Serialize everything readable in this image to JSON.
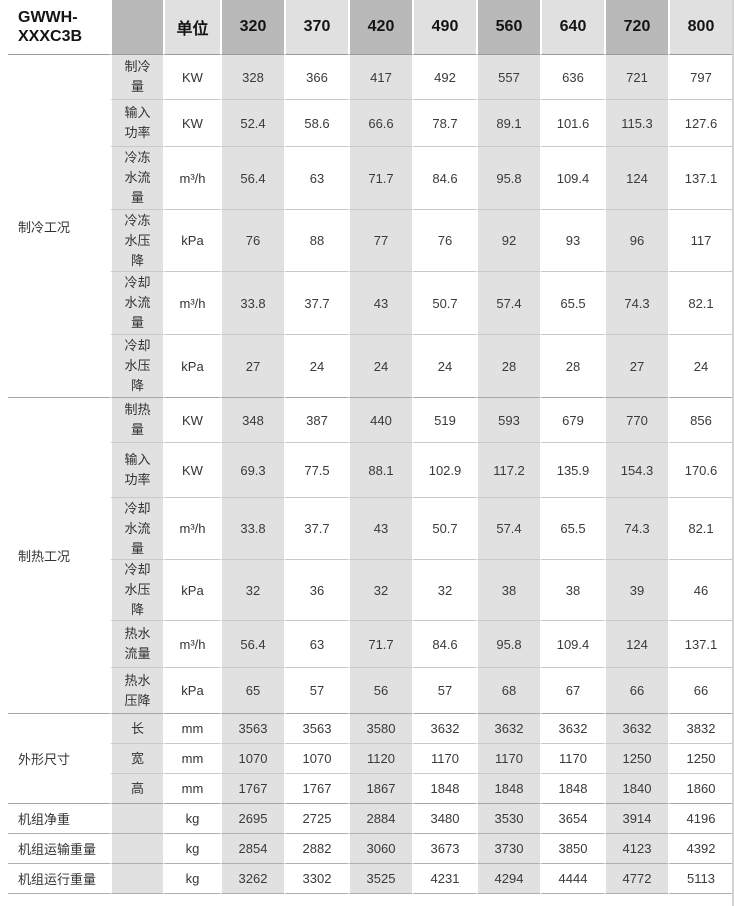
{
  "model": "GWWH-\nXXXC3B",
  "unit_header": "单位",
  "columns": [
    "320",
    "370",
    "420",
    "490",
    "560",
    "640",
    "720",
    "800"
  ],
  "groups": [
    {
      "label": "制冷工况",
      "rows": [
        {
          "param": "制冷\n量",
          "unit": "KW",
          "values": [
            "328",
            "366",
            "417",
            "492",
            "557",
            "636",
            "721",
            "797"
          ]
        },
        {
          "param": "输入\n功率",
          "unit": "KW",
          "values": [
            "52.4",
            "58.6",
            "66.6",
            "78.7",
            "89.1",
            "101.6",
            "115.3",
            "127.6"
          ]
        },
        {
          "param": "冷冻\n水流\n量",
          "unit": "m³/h",
          "values": [
            "56.4",
            "63",
            "71.7",
            "84.6",
            "95.8",
            "109.4",
            "124",
            "137.1"
          ]
        },
        {
          "param": "冷冻\n水压\n降",
          "unit": "kPa",
          "values": [
            "76",
            "88",
            "77",
            "76",
            "92",
            "93",
            "96",
            "117"
          ]
        },
        {
          "param": "冷却\n水流\n量",
          "unit": "m³/h",
          "values": [
            "33.8",
            "37.7",
            "43",
            "50.7",
            "57.4",
            "65.5",
            "74.3",
            "82.1"
          ]
        },
        {
          "param": "冷却\n水压\n降",
          "unit": "kPa",
          "values": [
            "27",
            "24",
            "24",
            "24",
            "28",
            "28",
            "27",
            "24"
          ]
        }
      ]
    },
    {
      "label": "制热工况",
      "rows": [
        {
          "param": "制热\n量",
          "unit": "KW",
          "values": [
            "348",
            "387",
            "440",
            "519",
            "593",
            "679",
            "770",
            "856"
          ]
        },
        {
          "param": "输入\n功率",
          "unit": "KW",
          "values": [
            "69.3",
            "77.5",
            "88.1",
            "102.9",
            "117.2",
            "135.9",
            "154.3",
            "170.6"
          ]
        },
        {
          "param": "冷却\n水流\n量",
          "unit": "m³/h",
          "values": [
            "33.8",
            "37.7",
            "43",
            "50.7",
            "57.4",
            "65.5",
            "74.3",
            "82.1"
          ]
        },
        {
          "param": "冷却\n水压\n降",
          "unit": "kPa",
          "values": [
            "32",
            "36",
            "32",
            "32",
            "38",
            "38",
            "39",
            "46"
          ]
        },
        {
          "param": "热水\n流量",
          "unit": "m³/h",
          "values": [
            "56.4",
            "63",
            "71.7",
            "84.6",
            "95.8",
            "109.4",
            "124",
            "137.1"
          ]
        },
        {
          "param": "热水\n压降",
          "unit": "kPa",
          "values": [
            "65",
            "57",
            "56",
            "57",
            "68",
            "67",
            "66",
            "66"
          ]
        }
      ]
    },
    {
      "label": "外形尺寸",
      "rows": [
        {
          "param": "长",
          "unit": "mm",
          "values": [
            "3563",
            "3563",
            "3580",
            "3632",
            "3632",
            "3632",
            "3632",
            "3832"
          ]
        },
        {
          "param": "宽",
          "unit": "mm",
          "values": [
            "1070",
            "1070",
            "1120",
            "1170",
            "1170",
            "1170",
            "1250",
            "1250"
          ]
        },
        {
          "param": "高",
          "unit": "mm",
          "values": [
            "1767",
            "1767",
            "1867",
            "1848",
            "1848",
            "1848",
            "1840",
            "1860"
          ]
        }
      ]
    }
  ],
  "footer_rows": [
    {
      "label": "机组净重",
      "unit": "kg",
      "values": [
        "2695",
        "2725",
        "2884",
        "3480",
        "3530",
        "3654",
        "3914",
        "4196"
      ]
    },
    {
      "label": "机组运输重量",
      "unit": "kg",
      "values": [
        "2854",
        "2882",
        "3060",
        "3673",
        "3730",
        "3850",
        "4123",
        "4392"
      ]
    },
    {
      "label": "机组运行重量",
      "unit": "kg",
      "values": [
        "3262",
        "3302",
        "3525",
        "4231",
        "4294",
        "4444",
        "4772",
        "5113"
      ]
    }
  ],
  "colors": {
    "header_dark": "#b9b9b9",
    "header_light": "#e0e0e0",
    "cell_shade": "#e1e1e1",
    "border_light": "#c9c9c9",
    "border_mid": "#b0b0b0",
    "border_dark": "#a6a6a6",
    "header_border": "#9b9b9b",
    "right_border": "#d2d2d2"
  }
}
